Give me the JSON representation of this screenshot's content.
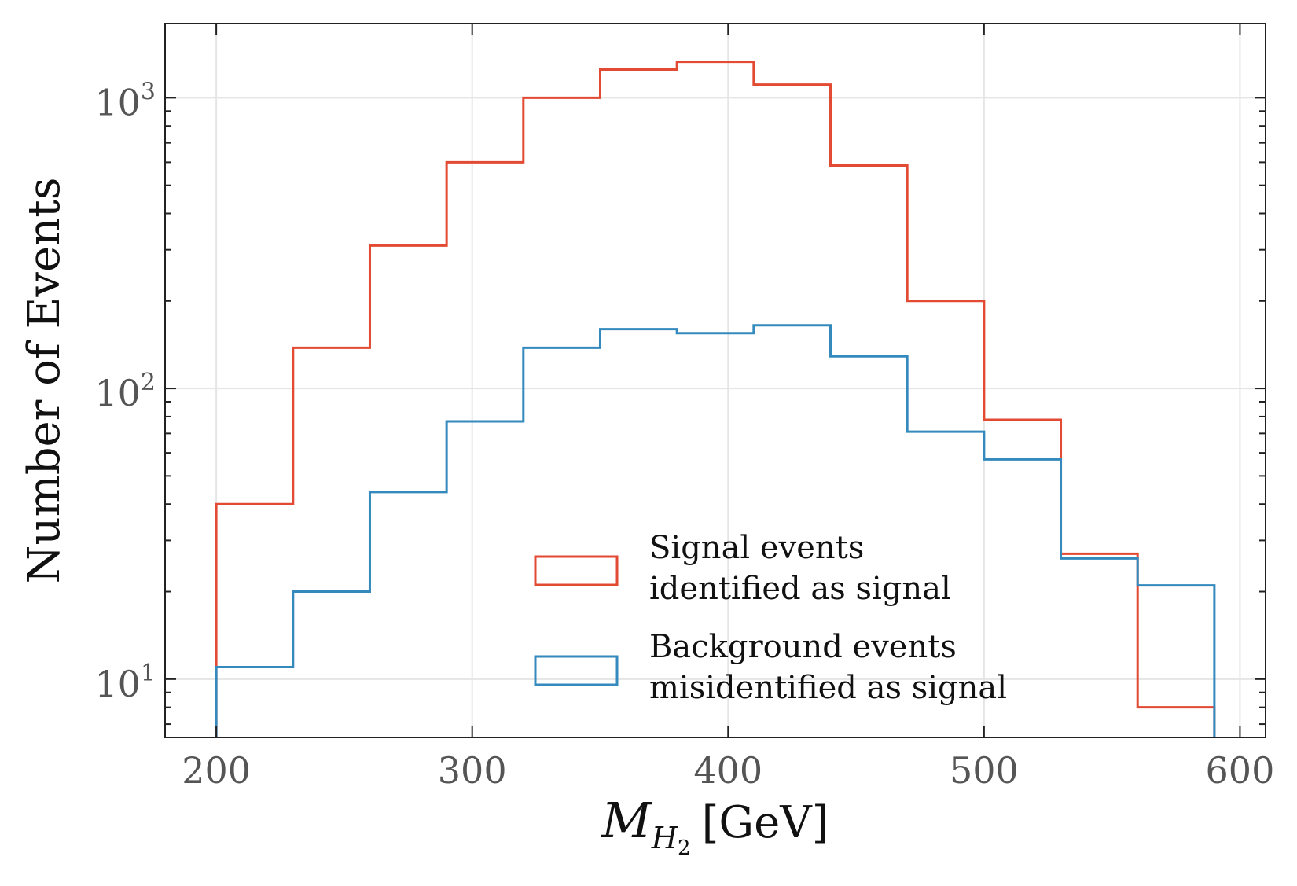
{
  "chart_data": {
    "type": "histogram",
    "yscale": "log",
    "xlabel": {
      "main": "M",
      "sub": "H",
      "subsub": "2",
      "unit": "[GeV]"
    },
    "ylabel": "Number of Events",
    "xlim": [
      180,
      610
    ],
    "ylim": [
      6.3,
      1800
    ],
    "xticks": [
      {
        "value": 200,
        "label": "200"
      },
      {
        "value": 300,
        "label": "300"
      },
      {
        "value": 400,
        "label": "400"
      },
      {
        "value": 500,
        "label": "500"
      },
      {
        "value": 600,
        "label": "600"
      }
    ],
    "yticks": [
      {
        "value": 10,
        "base": "10",
        "exp": "1"
      },
      {
        "value": 100,
        "base": "10",
        "exp": "2"
      },
      {
        "value": 1000,
        "base": "10",
        "exp": "3"
      }
    ],
    "bin_edges": [
      200,
      230,
      260,
      290,
      320,
      350,
      380,
      410,
      440,
      470,
      500,
      530,
      560,
      590
    ],
    "series": [
      {
        "name": "Signal events identified as signal",
        "legend_lines": [
          "Signal events",
          "identified as signal"
        ],
        "color": "#e24a33",
        "values": [
          40,
          138,
          310,
          600,
          1000,
          1250,
          1330,
          1110,
          585,
          200,
          78,
          27,
          8
        ]
      },
      {
        "name": "Background events misidentified as signal",
        "legend_lines": [
          "Background events",
          "misidentified as signal"
        ],
        "color": "#348abd",
        "values": [
          11,
          20,
          44,
          77,
          138,
          160,
          155,
          165,
          129,
          71,
          57,
          26,
          21
        ]
      }
    ],
    "legend_position": "lower-right",
    "grid": true
  }
}
